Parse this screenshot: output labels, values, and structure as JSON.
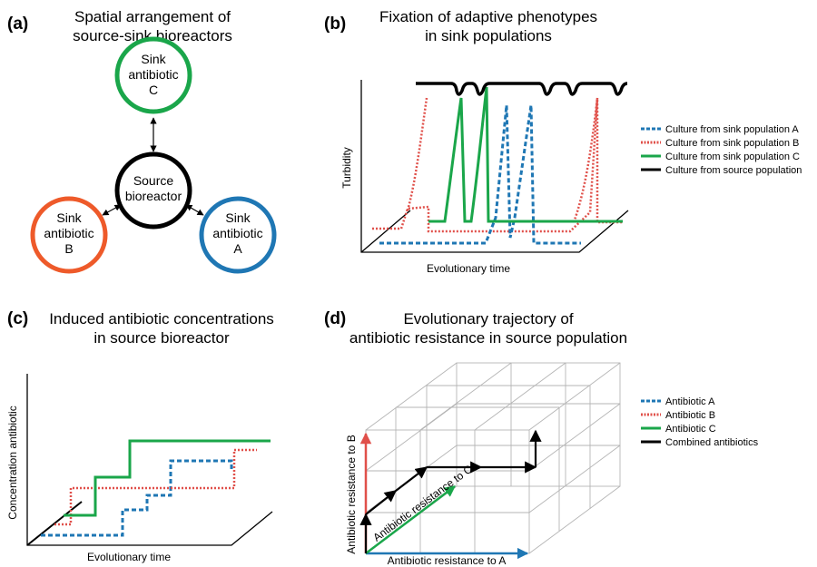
{
  "colors": {
    "A": "#1f77b4",
    "B": "#e0504a",
    "C": "#1aa64a",
    "source": "#000000",
    "sinkB": "#ee5a2a",
    "grid": "#b5b5b5"
  },
  "panel_a": {
    "letter": "(a)",
    "title_lines": [
      "Spatial arrangement of",
      "source-sink bioreactors"
    ],
    "nodes": {
      "sink_c": [
        "Sink",
        "antibiotic",
        "C"
      ],
      "source": [
        "Source",
        "bioreactor"
      ],
      "sink_b": [
        "Sink",
        "antibiotic",
        "B"
      ],
      "sink_a": [
        "Sink",
        "antibiotic",
        "A"
      ]
    }
  },
  "panel_b": {
    "letter": "(b)",
    "title_lines": [
      "Fixation of adaptive phenotypes",
      "in sink populations"
    ],
    "ylabel": "Turbidity",
    "xlabel": "Evolutionary time",
    "legend": [
      {
        "label": "Culture from sink population A",
        "style": "dashed",
        "color_key": "A"
      },
      {
        "label": "Culture from sink population B",
        "style": "dotted",
        "color_key": "B"
      },
      {
        "label": "Culture from sink population C",
        "style": "solid",
        "color_key": "C"
      },
      {
        "label": "Culture from source population",
        "style": "solid",
        "color_key": "source"
      }
    ]
  },
  "panel_c": {
    "letter": "(c)",
    "title_lines": [
      "Induced antibiotic concentrations",
      "in source bioreactor"
    ],
    "ylabel": "Concentration antibiotic",
    "xlabel": "Evolutionary time"
  },
  "panel_d": {
    "letter": "(d)",
    "title_lines": [
      "Evolutionary trajectory of",
      "antibiotic resistance in source population"
    ],
    "axis_a": "Antibiotic resistance to A",
    "axis_b": "Antibiotic resistance to B",
    "axis_c": "Antibiotic resistance to C",
    "legend": [
      {
        "label": "Antibiotic A",
        "style": "dashed",
        "color_key": "A"
      },
      {
        "label": "Antibiotic B",
        "style": "dotted",
        "color_key": "B"
      },
      {
        "label": "Antibiotic C",
        "style": "solid",
        "color_key": "C"
      },
      {
        "label": "Combined antibiotics",
        "style": "solid",
        "color_key": "source"
      }
    ]
  }
}
